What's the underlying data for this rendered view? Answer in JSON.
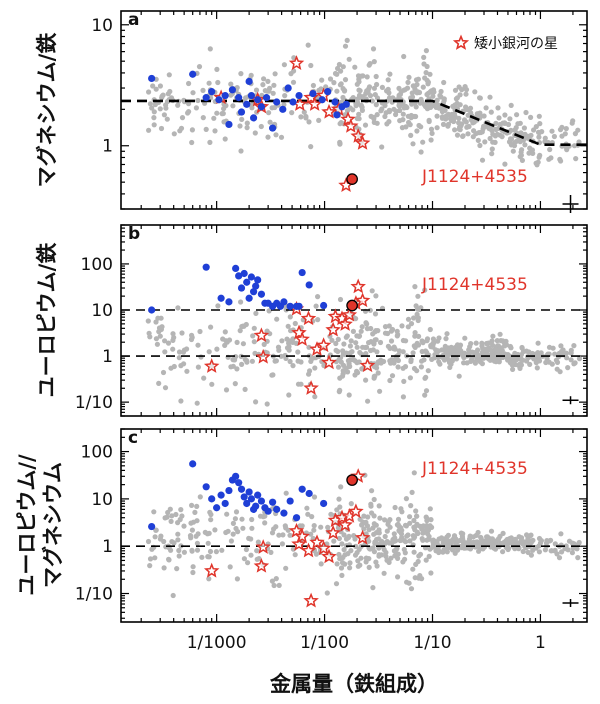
{
  "chart_data": [
    {
      "type": "scatter",
      "panel_letter": "a",
      "ylabel": "マグネシウム/鉄",
      "y_scale": "log",
      "ylim": [
        0.3,
        13
      ],
      "xlim": [
        0.00013,
        2.7
      ],
      "y_tick_labels": [
        {
          "value": 1,
          "label": "1"
        },
        {
          "value": 10,
          "label": "10"
        }
      ],
      "legend": {
        "label": "矮小銀河の星",
        "placement": "top-right"
      },
      "annotation": {
        "label": "J1124+4535",
        "x": 0.018,
        "y": 0.53
      },
      "reference_line": {
        "style": "dashed",
        "points": [
          [
            0.00013,
            2.35
          ],
          [
            0.1,
            2.35
          ],
          [
            1.0,
            1.02
          ],
          [
            2.7,
            1.02
          ]
        ]
      },
      "error_bar": {
        "x": 1.9,
        "y": 0.33
      },
      "series": [
        {
          "name": "矮小銀河の星",
          "marker": "star",
          "color": "#e0352b",
          "points": [
            [
              0.0011,
              2.5
            ],
            [
              0.0024,
              2.4
            ],
            [
              0.0026,
              2.1
            ],
            [
              0.0055,
              4.8
            ],
            [
              0.0059,
              2.2
            ],
            [
              0.0075,
              2.5
            ],
            [
              0.0081,
              2.2
            ],
            [
              0.0098,
              2.6
            ],
            [
              0.011,
              1.9
            ],
            [
              0.0135,
              2.0
            ],
            [
              0.0165,
              1.65
            ],
            [
              0.0175,
              1.45
            ],
            [
              0.0205,
              1.2
            ],
            [
              0.0225,
              1.05
            ],
            [
              0.0158,
              0.47
            ]
          ]
        },
        {
          "marker": "circle",
          "color": "#1f3fd6",
          "points": [
            [
              0.00025,
              3.6
            ],
            [
              0.0006,
              3.9
            ],
            [
              0.0008,
              2.5
            ],
            [
              0.0009,
              2.8
            ],
            [
              0.00105,
              2.4
            ],
            [
              0.0012,
              2.6
            ],
            [
              0.0013,
              1.5
            ],
            [
              0.0014,
              2.9
            ],
            [
              0.0016,
              2.5
            ],
            [
              0.0017,
              1.9
            ],
            [
              0.0019,
              2.2
            ],
            [
              0.002,
              3.4
            ],
            [
              0.0021,
              2.6
            ],
            [
              0.0022,
              1.7
            ],
            [
              0.0024,
              2.4
            ],
            [
              0.0026,
              2.1
            ],
            [
              0.0029,
              2.5
            ],
            [
              0.0033,
              1.4
            ],
            [
              0.0036,
              2.3
            ],
            [
              0.0041,
              2.0
            ],
            [
              0.0046,
              3.0
            ],
            [
              0.0051,
              2.3
            ],
            [
              0.0058,
              2.6
            ],
            [
              0.0078,
              2.7
            ],
            [
              0.0095,
              2.4
            ],
            [
              0.0107,
              2.8
            ],
            [
              0.0125,
              2.3
            ],
            [
              0.013,
              1.8
            ],
            [
              0.0145,
              2.1
            ],
            [
              0.0159,
              2.2
            ]
          ]
        },
        {
          "marker": "circle",
          "color": "#e0352b",
          "points": [
            [
              0.018,
              0.53
            ]
          ]
        }
      ]
    },
    {
      "type": "scatter",
      "panel_letter": "b",
      "ylabel": "ユーロピウム/鉄",
      "y_scale": "log",
      "ylim": [
        0.05,
        700
      ],
      "xlim": [
        0.00013,
        2.7
      ],
      "y_tick_labels": [
        {
          "value": 0.1,
          "label": "1/10"
        },
        {
          "value": 1,
          "label": "1"
        },
        {
          "value": 10,
          "label": "10"
        },
        {
          "value": 100,
          "label": "100"
        }
      ],
      "annotation": {
        "label": "J1124+4535",
        "x": 0.018,
        "y": 12.5
      },
      "reference_line": [
        {
          "style": "dashed",
          "y": 10
        },
        {
          "style": "dashed",
          "y": 1
        }
      ],
      "error_bar": {
        "x": 1.9,
        "y": 0.11
      },
      "series": [
        {
          "name": "矮小銀河の星",
          "marker": "star",
          "color": "#e0352b",
          "points": [
            [
              0.0009,
              0.6
            ],
            [
              0.0026,
              2.8
            ],
            [
              0.0027,
              0.95
            ],
            [
              0.0055,
              10.5
            ],
            [
              0.0058,
              3.2
            ],
            [
              0.0062,
              2.3
            ],
            [
              0.0071,
              6.5
            ],
            [
              0.0075,
              0.2
            ],
            [
              0.0085,
              1.4
            ],
            [
              0.0098,
              1.7
            ],
            [
              0.011,
              0.72
            ],
            [
              0.012,
              3.7
            ],
            [
              0.0126,
              7.2
            ],
            [
              0.0145,
              6.5
            ],
            [
              0.0155,
              4.9
            ],
            [
              0.017,
              7.8
            ],
            [
              0.0195,
              14.0
            ],
            [
              0.0205,
              32.0
            ],
            [
              0.0225,
              16.0
            ],
            [
              0.025,
              0.62
            ]
          ]
        },
        {
          "marker": "circle",
          "color": "#1f3fd6",
          "points": [
            [
              0.00025,
              10.0
            ],
            [
              0.0008,
              85.0
            ],
            [
              0.0011,
              18.0
            ],
            [
              0.0013,
              15.0
            ],
            [
              0.0015,
              80.0
            ],
            [
              0.0016,
              55.0
            ],
            [
              0.0017,
              30.0
            ],
            [
              0.0018,
              62.0
            ],
            [
              0.0019,
              40.0
            ],
            [
              0.002,
              18.0
            ],
            [
              0.0021,
              52.0
            ],
            [
              0.0022,
              25.0
            ],
            [
              0.0023,
              33.0
            ],
            [
              0.0024,
              45.0
            ],
            [
              0.0026,
              22.0
            ],
            [
              0.0028,
              14.0
            ],
            [
              0.003,
              14.0
            ],
            [
              0.0033,
              12.0
            ],
            [
              0.0036,
              14.0
            ],
            [
              0.0039,
              12.0
            ],
            [
              0.0042,
              15.0
            ],
            [
              0.0048,
              12.0
            ],
            [
              0.0055,
              12.0
            ],
            [
              0.0058,
              12.0
            ],
            [
              0.0062,
              65.0
            ],
            [
              0.0072,
              35.0
            ],
            [
              0.0098,
              12.5
            ]
          ]
        },
        {
          "marker": "circle",
          "color": "#e0352b",
          "points": [
            [
              0.018,
              12.5
            ]
          ]
        }
      ]
    },
    {
      "type": "scatter",
      "panel_letter": "c",
      "ylabel": "ユーロピウム/マグネシウム",
      "y_scale": "log",
      "ylim": [
        0.025,
        300
      ],
      "xlim": [
        0.00013,
        2.7
      ],
      "x_scale": "log",
      "x_tick_labels": [
        {
          "value": 0.001,
          "label": "1/1000"
        },
        {
          "value": 0.01,
          "label": "1/100"
        },
        {
          "value": 0.1,
          "label": "1/10"
        },
        {
          "value": 1,
          "label": "1"
        }
      ],
      "xlabel": "金属量（鉄組成）",
      "y_tick_labels": [
        {
          "value": 0.1,
          "label": "1/10"
        },
        {
          "value": 1,
          "label": "1"
        },
        {
          "value": 10,
          "label": "10"
        },
        {
          "value": 100,
          "label": "100"
        }
      ],
      "annotation": {
        "label": "J1124+4535",
        "x": 0.018,
        "y": 25.0
      },
      "reference_line": {
        "style": "dashed",
        "y": 1
      },
      "error_bar": {
        "x": 1.9,
        "y": 0.063
      },
      "series": [
        {
          "name": "矮小銀河の星",
          "marker": "star",
          "color": "#e0352b",
          "points": [
            [
              0.0009,
              0.3
            ],
            [
              0.0026,
              0.38
            ],
            [
              0.0027,
              0.95
            ],
            [
              0.0055,
              2.1
            ],
            [
              0.0058,
              1.1
            ],
            [
              0.0062,
              1.6
            ],
            [
              0.0071,
              0.8
            ],
            [
              0.0075,
              0.07
            ],
            [
              0.0085,
              1.2
            ],
            [
              0.0098,
              0.9
            ],
            [
              0.011,
              0.6
            ],
            [
              0.012,
              1.9
            ],
            [
              0.0126,
              3.5
            ],
            [
              0.0145,
              4.0
            ],
            [
              0.0155,
              2.8
            ],
            [
              0.017,
              4.3
            ],
            [
              0.0195,
              5.4
            ],
            [
              0.0205,
              30.0
            ],
            [
              0.0225,
              1.5
            ]
          ]
        },
        {
          "marker": "circle",
          "color": "#1f3fd6",
          "points": [
            [
              0.00025,
              2.6
            ],
            [
              0.0006,
              55.0
            ],
            [
              0.0008,
              18.0
            ],
            [
              0.0009,
              10.0
            ],
            [
              0.001,
              6.5
            ],
            [
              0.0011,
              12.0
            ],
            [
              0.0012,
              8.0
            ],
            [
              0.0013,
              15.0
            ],
            [
              0.0014,
              25.0
            ],
            [
              0.0015,
              30.0
            ],
            [
              0.0016,
              22.0
            ],
            [
              0.0017,
              16.0
            ],
            [
              0.0018,
              11.0
            ],
            [
              0.0019,
              8.0
            ],
            [
              0.002,
              14.0
            ],
            [
              0.0021,
              10.0
            ],
            [
              0.0022,
              6.0
            ],
            [
              0.0023,
              7.0
            ],
            [
              0.0024,
              12.0
            ],
            [
              0.0026,
              9.0
            ],
            [
              0.0028,
              6.5
            ],
            [
              0.003,
              5.5
            ],
            [
              0.0033,
              8.5
            ],
            [
              0.0036,
              6.0
            ],
            [
              0.0042,
              5.0
            ],
            [
              0.0048,
              9.0
            ],
            [
              0.0055,
              4.0
            ],
            [
              0.0062,
              16.0
            ],
            [
              0.0072,
              13.0
            ],
            [
              0.0098,
              8.0
            ]
          ]
        },
        {
          "marker": "circle",
          "color": "#e0352b",
          "points": [
            [
              0.018,
              25.0
            ]
          ]
        }
      ]
    }
  ]
}
